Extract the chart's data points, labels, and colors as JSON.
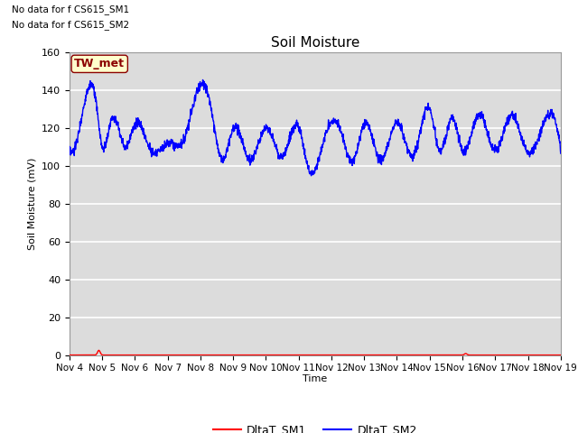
{
  "title": "Soil Moisture",
  "ylabel": "Soil Moisture (mV)",
  "xlabel": "Time",
  "ylim": [
    0,
    160
  ],
  "plot_bg_color": "#dcdcdc",
  "grid_color": "white",
  "sm1_color": "#ff0000",
  "sm2_color": "#0000ff",
  "sm1_label": "DltaT_SM1",
  "sm2_label": "DltaT_SM2",
  "no_data_text1": "No data for f CS615_SM1",
  "no_data_text2": "No data for f CS615_SM2",
  "tw_met_label": "TW_met",
  "x_tick_labels": [
    "Nov 4",
    "Nov 5",
    "Nov 6",
    "Nov 7",
    "Nov 8",
    "Nov 9",
    "Nov 10",
    "Nov 11",
    "Nov 12",
    "Nov 13",
    "Nov 14",
    "Nov 15",
    "Nov 16",
    "Nov 17",
    "Nov 18",
    "Nov 19"
  ],
  "x_tick_positions": [
    0,
    1,
    2,
    3,
    4,
    5,
    6,
    7,
    8,
    9,
    10,
    11,
    12,
    13,
    14,
    15
  ],
  "yticks": [
    0,
    20,
    40,
    60,
    80,
    100,
    120,
    140,
    160
  ]
}
